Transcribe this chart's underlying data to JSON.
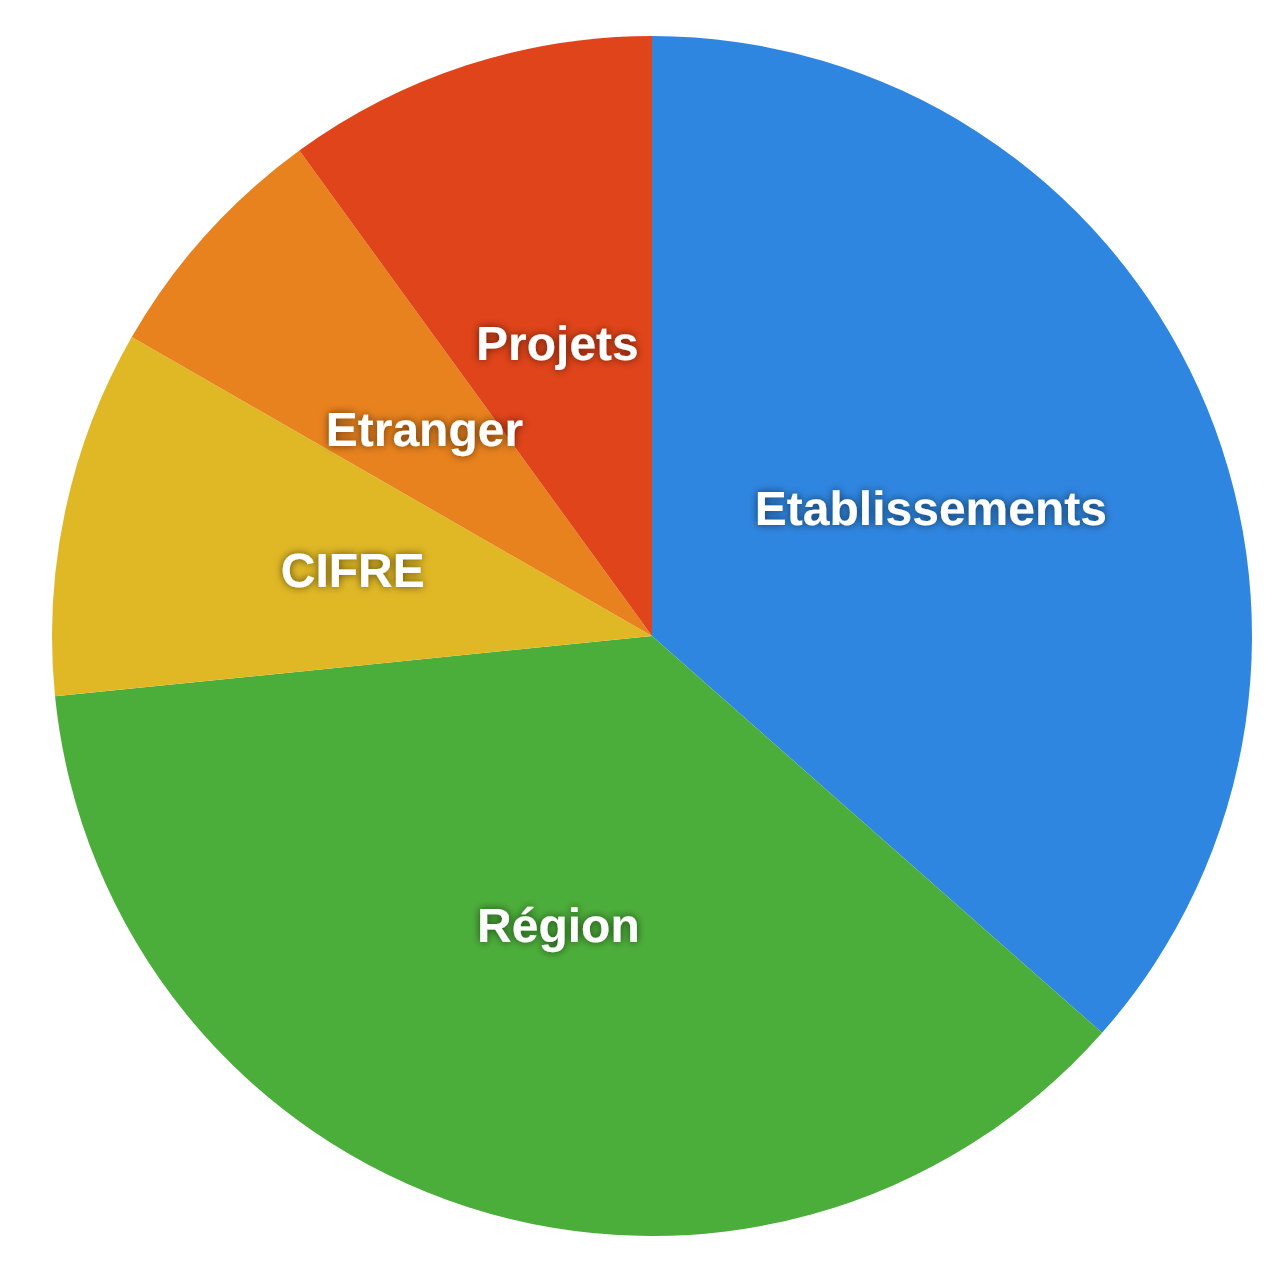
{
  "chart_data": {
    "type": "pie",
    "categories": [
      "Etablissements",
      "Région",
      "CIFRE",
      "Etranger",
      "Projets"
    ],
    "values": [
      36.5,
      36.9,
      9.9,
      6.7,
      10.0
    ],
    "colors": [
      "#2f86e0",
      "#4cae3a",
      "#e0b826",
      "#e8821e",
      "#e0441a"
    ]
  }
}
